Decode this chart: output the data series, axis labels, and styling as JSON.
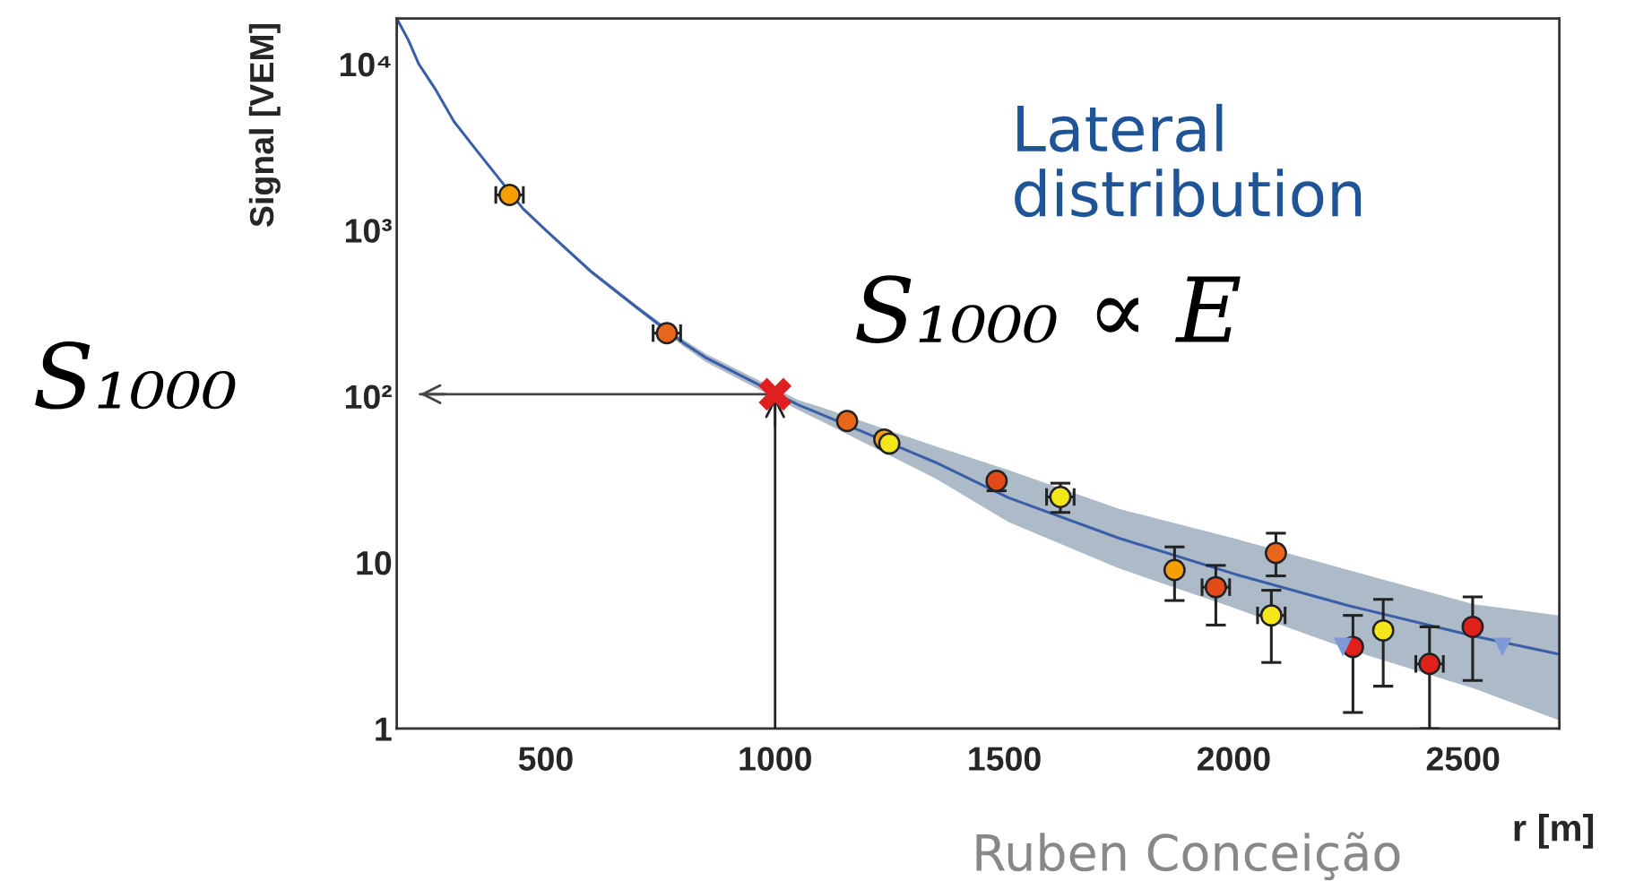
{
  "chart_data": {
    "type": "scatter",
    "ylabel": "Signal [VEM]",
    "xlabel": "r [m]",
    "log": "y",
    "xlim": [
      175,
      2710
    ],
    "ylim": [
      1,
      18800
    ],
    "xticks": [
      500,
      1000,
      1500,
      2000,
      2500
    ],
    "yticks": [
      {
        "value": 1,
        "label": "1"
      },
      {
        "value": 10,
        "label": "10"
      },
      {
        "value": 100,
        "label": "10²"
      },
      {
        "value": 1000,
        "label": "10³"
      },
      {
        "value": 10000,
        "label": "10⁴"
      }
    ],
    "grid": false,
    "ref_lines": [
      {
        "axis": "x",
        "value": 1000,
        "color": "#222222"
      },
      {
        "axis": "y",
        "value": 103,
        "color": "#444444"
      }
    ],
    "annotations": [
      "Lateral distribution",
      "S₁₀₀₀ ∝ E",
      "S₁₀₀₀",
      "Ruben Conceição"
    ],
    "series": [
      {
        "type": "line",
        "color": "#3a5fa8",
        "x": [
          175,
          200,
          223,
          260,
          300,
          350,
          450,
          500,
          600,
          700,
          800,
          850,
          1050,
          1100,
          1350,
          1509,
          1750,
          2003,
          2250,
          2524,
          2710
        ],
        "values": [
          18800,
          14000,
          10000,
          7000,
          4500,
          3000,
          1350,
          1000,
          560,
          340,
          210,
          170,
          89,
          78,
          40,
          24.5,
          14,
          8.5,
          5.5,
          3.6,
          2.8
        ],
        "lower": [
          18800,
          14000,
          10000,
          7000,
          4500,
          3000,
          1320,
          980,
          545,
          330,
          200,
          160,
          83,
          71,
          32,
          17.5,
          9.2,
          5.3,
          3.0,
          1.74,
          1.12
        ],
        "upper": [
          18800,
          14000,
          10000,
          7000,
          4500,
          3000,
          1380,
          1020,
          575,
          350,
          220,
          180,
          95,
          86,
          50,
          36,
          21,
          13.9,
          9.0,
          5.6,
          4.8
        ]
      },
      {
        "marker": "circle",
        "color": "#e8661a",
        "colors": [
          "#f5a000",
          "#e8661a",
          "#e8661a",
          "#f5a000",
          "#f5e61a",
          "#e34a1a",
          "#f5e61a",
          "#f5a000",
          "#e34a1a",
          "#e8661a",
          "#f5e61a",
          "#e0201a",
          "#f5e61a",
          "#e0201a",
          "#e0201a"
        ],
        "x": [
          421,
          764,
          1157,
          1238,
          1249,
          1483,
          1622,
          1871,
          1961,
          2092,
          2082,
          2260,
          2326,
          2427,
          2521
        ],
        "values": [
          1630,
          240,
          71,
          55,
          52,
          31,
          24.8,
          9.0,
          7.1,
          11.4,
          4.8,
          3.1,
          3.9,
          2.45,
          4.1
        ],
        "errors": [
          null,
          null,
          null,
          null,
          null,
          [
            27,
            32
          ],
          [
            20,
            30
          ],
          [
            5.9,
            12.4
          ],
          [
            4.2,
            9.6
          ],
          [
            8.3,
            15
          ],
          [
            2.5,
            6.8
          ],
          [
            1.25,
            4.8
          ],
          [
            1.8,
            6.0
          ],
          [
            1.0,
            4.1
          ],
          [
            1.95,
            6.2
          ]
        ],
        "xerrors": [
          30,
          30,
          null,
          null,
          null,
          null,
          30,
          null,
          30,
          null,
          30,
          null,
          null,
          30,
          null
        ]
      },
      {
        "marker": "triangle",
        "color": "#7f98d8",
        "x": [
          2238,
          2586
        ],
        "values": [
          3.1,
          3.1
        ]
      },
      {
        "marker": "cross",
        "color": "#e02020",
        "x": [
          1000
        ],
        "values": [
          103
        ]
      }
    ]
  }
}
